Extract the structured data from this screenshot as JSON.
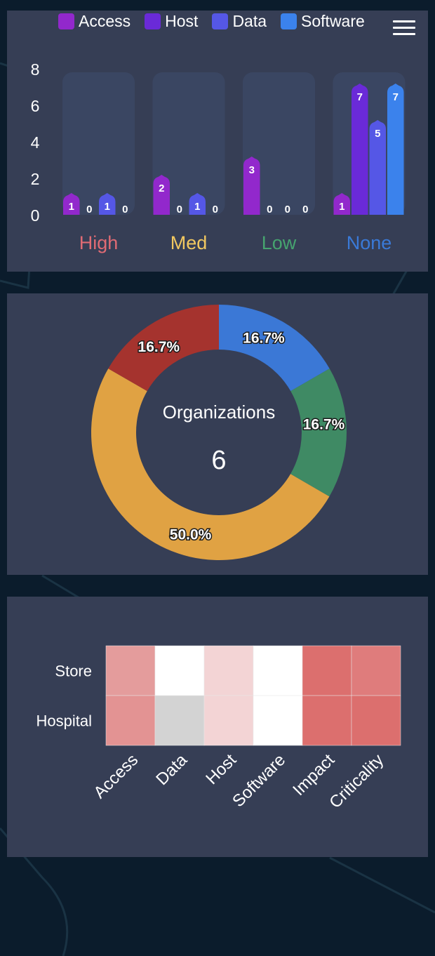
{
  "colors": {
    "page_bg": "#0b1c2c",
    "panel_bg": "#363e55",
    "access": "#9228cc",
    "host": "#6a2ad8",
    "data": "#5557e6",
    "software": "#3b82ec",
    "high": "#e06b74",
    "med": "#f2c860",
    "low": "#46a36f",
    "none": "#3a7ad8"
  },
  "menu": {
    "icon": "hamburger-menu-icon"
  },
  "bar_chart": {
    "type": "bar",
    "legend": [
      "Access",
      "Host",
      "Data",
      "Software"
    ],
    "legend_position": "top",
    "categories": [
      "High",
      "Med",
      "Low",
      "None"
    ],
    "category_colors": [
      "#e06b74",
      "#f2c860",
      "#46a36f",
      "#3a7ad8"
    ],
    "series": [
      {
        "name": "Access",
        "color": "#9228cc",
        "values": [
          1,
          2,
          3,
          1
        ]
      },
      {
        "name": "Host",
        "color": "#6a2ad8",
        "values": [
          0,
          0,
          0,
          7
        ]
      },
      {
        "name": "Data",
        "color": "#5557e6",
        "values": [
          1,
          1,
          0,
          5
        ]
      },
      {
        "name": "Software",
        "color": "#3b82ec",
        "values": [
          0,
          0,
          0,
          7
        ]
      }
    ],
    "y_ticks": [
      0,
      2,
      4,
      6,
      8
    ],
    "ylim": [
      0,
      8
    ]
  },
  "donut_chart": {
    "type": "pie",
    "center_label": "Organizations",
    "center_value": "6",
    "slices": [
      {
        "value": 16.7,
        "label": "16.7%",
        "color": "#3b78d6"
      },
      {
        "value": 16.7,
        "label": "16.7%",
        "color": "#3f8a64"
      },
      {
        "value": 50.0,
        "label": "50.0%",
        "color": "#e0a243"
      },
      {
        "value": 16.7,
        "label": "16.7%",
        "color": "#a5332e"
      }
    ]
  },
  "heatmap": {
    "type": "heatmap",
    "rows": [
      "Store",
      "Hospital"
    ],
    "columns": [
      "Access",
      "Data",
      "Host",
      "Software",
      "Impact",
      "Criticality"
    ],
    "cell_colors": [
      [
        "#e49c9c",
        "#ffffff",
        "#f3d4d5",
        "#ffffff",
        "#dc6f6e",
        "#df7c7c"
      ],
      [
        "#e39393",
        "#d3d3d3",
        "#f3d4d5",
        "#ffffff",
        "#dc6f6e",
        "#dc6f6e"
      ]
    ]
  }
}
